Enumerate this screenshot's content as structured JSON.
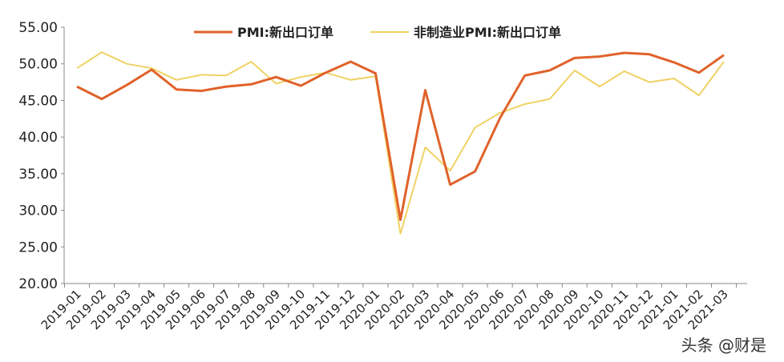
{
  "chart_data": {
    "type": "line",
    "categories": [
      "2019-01",
      "2019-02",
      "2019-03",
      "2019-04",
      "2019-05",
      "2019-06",
      "2019-07",
      "2019-08",
      "2019-09",
      "2019-10",
      "2019-11",
      "2019-12",
      "2020-01",
      "2020-02",
      "2020-03",
      "2020-04",
      "2020-05",
      "2020-06",
      "2020-07",
      "2020-08",
      "2020-09",
      "2020-10",
      "2020-11",
      "2020-12",
      "2021-01",
      "2021-02",
      "2021-03"
    ],
    "y_ticks": [
      "55.00",
      "50.00",
      "45.00",
      "40.00",
      "35.00",
      "30.00",
      "25.00",
      "20.00"
    ],
    "ylim": [
      20,
      55
    ],
    "series": [
      {
        "name": "PMI:新出口订单",
        "color": "#E0622A",
        "values": [
          46.9,
          45.2,
          47.1,
          49.2,
          46.5,
          46.3,
          46.9,
          47.2,
          48.2,
          47.0,
          48.8,
          50.3,
          48.7,
          28.7,
          46.4,
          33.5,
          35.3,
          42.6,
          48.4,
          49.1,
          50.8,
          51.0,
          51.5,
          51.3,
          50.2,
          48.8,
          51.2
        ]
      },
      {
        "name": "非制造业PMI:新出口订单",
        "color": "#F0D264",
        "values": [
          49.4,
          51.6,
          50.0,
          49.4,
          47.8,
          48.5,
          48.4,
          50.3,
          47.3,
          48.2,
          48.8,
          47.8,
          48.3,
          26.8,
          38.6,
          35.4,
          41.3,
          43.3,
          44.5,
          45.2,
          49.1,
          46.9,
          49.0,
          47.5,
          48.0,
          45.7,
          50.3
        ]
      }
    ],
    "grid": false,
    "legend_position": "top"
  },
  "watermark": "头条 @财是"
}
